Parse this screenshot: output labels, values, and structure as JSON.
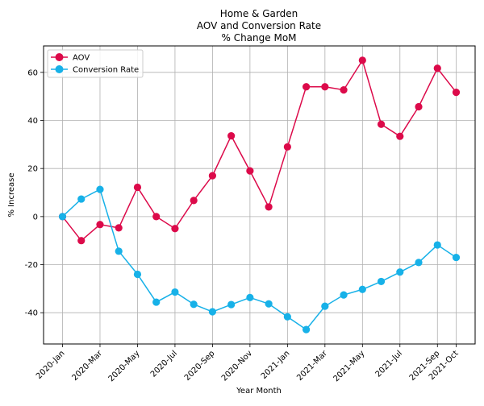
{
  "chart_data": {
    "type": "line",
    "title_lines": [
      "Home & Garden",
      "AOV and Conversion Rate",
      "% Change MoM"
    ],
    "xlabel": "Year Month",
    "ylabel": "% Increase",
    "categories": [
      "2020-Jan",
      "2020-Feb",
      "2020-Mar",
      "2020-Apr",
      "2020-May",
      "2020-Jun",
      "2020-Jul",
      "2020-Aug",
      "2020-Sep",
      "2020-Oct",
      "2020-Nov",
      "2020-Dec",
      "2021-Jan",
      "2021-Feb",
      "2021-Mar",
      "2021-Apr",
      "2021-May",
      "2021-Jun",
      "2021-Jul",
      "2021-Aug",
      "2021-Sep",
      "2021-Oct"
    ],
    "xtick_labels": [
      "2020-Jan",
      "2020-Mar",
      "2020-May",
      "2020-Jul",
      "2020-Sep",
      "2020-Nov",
      "2021-Jan",
      "2021-Mar",
      "2021-May",
      "2021-Jul",
      "2021-Sep",
      "2021-Oct"
    ],
    "yticks": [
      -40,
      -20,
      0,
      20,
      40,
      60
    ],
    "ylim": [
      -53,
      71
    ],
    "grid": true,
    "legend_position": "top-left",
    "series": [
      {
        "name": "AOV",
        "color": "#dc0a4a",
        "values": [
          0,
          -10,
          -3.3,
          -4.7,
          12.2,
          0,
          -5,
          6.7,
          17,
          33.6,
          19,
          4,
          29,
          54,
          54,
          52.7,
          65,
          38.4,
          33.4,
          45.7,
          61.7,
          51.7
        ]
      },
      {
        "name": "Conversion Rate",
        "color": "#17b1e8",
        "values": [
          0,
          7.3,
          11.3,
          -14.4,
          -24,
          -35.6,
          -31.4,
          -36.5,
          -39.6,
          -36.6,
          -33.7,
          -36.3,
          -41.7,
          -47,
          -37.3,
          -32.6,
          -30.3,
          -27,
          -23.1,
          -19.1,
          -11.8,
          -17
        ]
      }
    ]
  }
}
